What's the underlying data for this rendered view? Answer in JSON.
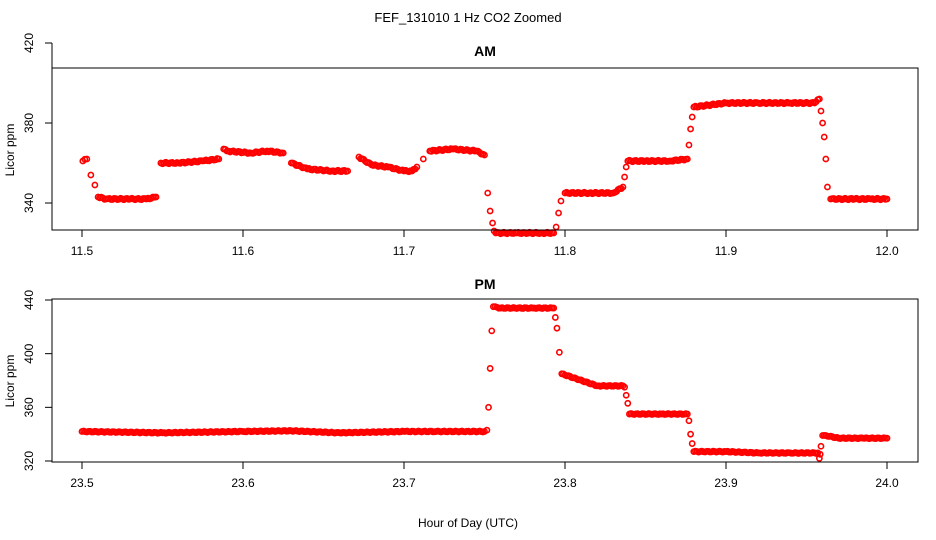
{
  "chart_data": {
    "title": "FEF_131010  1 Hz CO2 Zoomed",
    "xlabel": "Hour of Day (UTC)",
    "colors": {
      "points": "#ff0000",
      "axes": "#000000"
    },
    "panels": [
      {
        "type": "scatter",
        "title": "AM",
        "ylabel": "Licor ppm",
        "xlim": [
          11.5,
          12.0
        ],
        "ylim": [
          327,
          407
        ],
        "xticks": [
          "11.5",
          "11.6",
          "11.7",
          "11.8",
          "11.9",
          "12.0"
        ],
        "yticks": [
          "340",
          "380",
          "420"
        ],
        "series": [
          {
            "x": [
              11.5005,
              11.503,
              11.5055,
              11.508,
              11.51,
              11.515,
              11.53,
              11.54,
              11.546,
              11.549,
              11.56,
              11.575,
              11.585,
              11.588,
              11.59,
              11.605,
              11.615,
              11.625,
              11.63,
              11.64,
              11.655,
              11.665,
              11.672,
              11.68,
              11.69,
              11.7,
              11.705,
              11.708,
              11.712,
              11.716,
              11.73,
              11.745,
              11.75,
              11.752,
              11.7535,
              11.755,
              11.756,
              11.757,
              11.77,
              11.785,
              11.793,
              11.7945,
              11.796,
              11.7975,
              11.8,
              11.815,
              11.83,
              11.836,
              11.837,
              11.838,
              11.839,
              11.85,
              11.865,
              11.876,
              11.877,
              11.878,
              11.879,
              11.88,
              11.9,
              11.92,
              11.94,
              11.955,
              11.958,
              11.959,
              11.96,
              11.961,
              11.962,
              11.963,
              11.965,
              11.98,
              11.99,
              12.0
            ],
            "y": [
              361,
              362,
              354,
              349,
              343,
              342,
              342,
              342,
              343,
              360,
              360,
              361,
              362,
              367,
              366,
              365,
              366,
              365,
              360,
              357,
              356,
              356,
              363,
              359,
              358,
              356,
              356,
              358,
              362,
              366,
              367,
              366,
              364,
              345,
              336,
              330,
              326,
              325,
              325,
              325,
              325,
              328,
              335,
              341,
              345,
              345,
              345,
              348,
              353,
              358,
              361,
              361,
              361,
              362,
              369,
              377,
              383,
              388,
              390,
              390,
              390,
              390,
              392,
              386,
              380,
              373,
              362,
              348,
              342,
              342,
              342,
              342
            ]
          }
        ]
      },
      {
        "type": "scatter",
        "title": "PM",
        "ylabel": "Licor ppm",
        "xlim": [
          23.5,
          24.0
        ],
        "ylim": [
          320,
          440
        ],
        "xticks": [
          "23.5",
          "23.6",
          "23.7",
          "23.8",
          "23.9",
          "24.0"
        ],
        "yticks": [
          "320",
          "360",
          "400",
          "440"
        ],
        "series": [
          {
            "x": [
              23.5,
              23.55,
              23.6,
              23.63,
              23.66,
              23.7,
              23.72,
              23.75,
              23.7515,
              23.7525,
              23.7535,
              23.7545,
              23.7555,
              23.76,
              23.78,
              23.793,
              23.794,
              23.795,
              23.7965,
              23.798,
              23.82,
              23.836,
              23.837,
              23.838,
              23.839,
              23.84,
              23.86,
              23.876,
              23.877,
              23.878,
              23.879,
              23.88,
              23.9,
              23.92,
              23.94,
              23.957,
              23.958,
              23.9585,
              23.959,
              23.96,
              23.962,
              23.97,
              23.985,
              24.0
            ],
            "y": [
              342,
              341,
              342,
              342.5,
              341,
              342,
              342,
              342,
              343,
              360,
              389,
              417,
              435,
              434,
              434,
              434,
              427,
              419,
              401,
              385,
              376,
              376,
              375,
              369,
              363,
              355,
              355,
              355,
              350,
              340,
              333,
              327,
              327,
              326,
              326,
              326,
              322,
              325,
              331,
              339,
              339,
              337,
              337,
              337
            ]
          }
        ]
      }
    ]
  }
}
